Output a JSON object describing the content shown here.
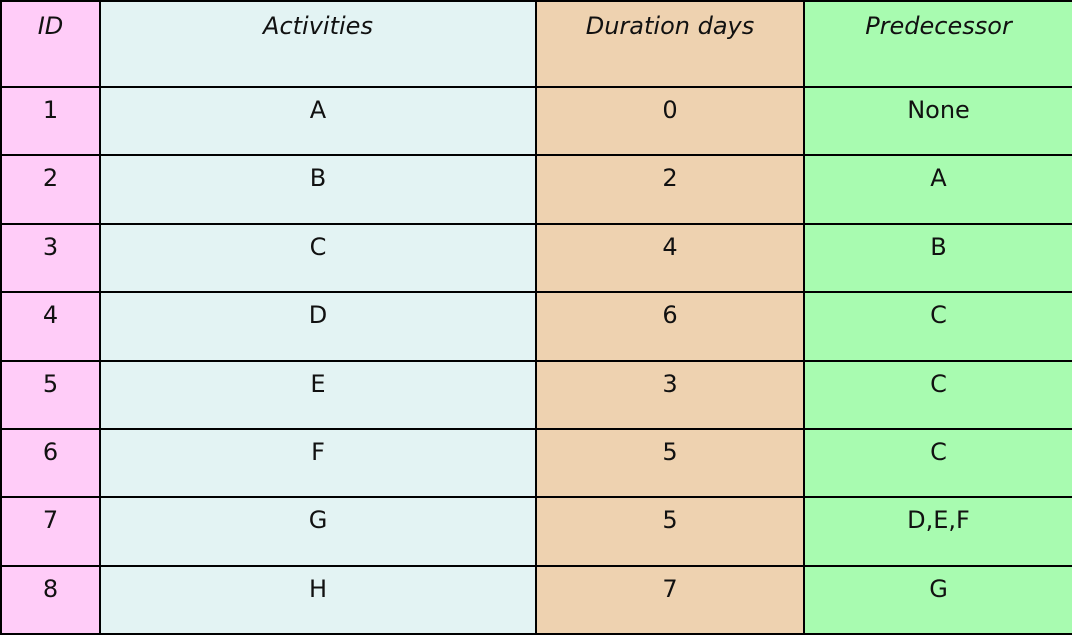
{
  "table": {
    "headers": {
      "id": "ID",
      "activities": "Activities",
      "duration": "Duration days",
      "predecessor": "Predecessor"
    },
    "rows": [
      {
        "id": "1",
        "activity": "A",
        "duration": "0",
        "predecessor": "None"
      },
      {
        "id": "2",
        "activity": "B",
        "duration": "2",
        "predecessor": "A"
      },
      {
        "id": "3",
        "activity": "C",
        "duration": "4",
        "predecessor": "B"
      },
      {
        "id": "4",
        "activity": "D",
        "duration": "6",
        "predecessor": "C"
      },
      {
        "id": "5",
        "activity": "E",
        "duration": "3",
        "predecessor": "C"
      },
      {
        "id": "6",
        "activity": "F",
        "duration": "5",
        "predecessor": "C"
      },
      {
        "id": "7",
        "activity": "G",
        "duration": "5",
        "predecessor": "D,E,F"
      },
      {
        "id": "8",
        "activity": "H",
        "duration": "7",
        "predecessor": "G"
      }
    ],
    "colors": {
      "id_column": "#ffccf8",
      "activities_column": "#e3f3f3",
      "duration_column": "#eed2b0",
      "predecessor_column": "#a8fbb0",
      "border": "#000000"
    }
  }
}
